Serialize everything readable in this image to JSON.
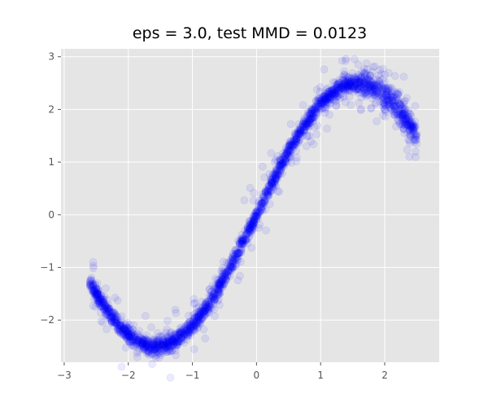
{
  "chart_data": {
    "type": "scatter",
    "title": "eps = 3.0, test MMD = 0.0123",
    "xlabel": "",
    "ylabel": "",
    "xlim": [
      -3.05,
      2.85
    ],
    "ylim": [
      -2.8,
      3.15
    ],
    "xticks": [
      -3,
      -2,
      -1,
      0,
      1,
      2
    ],
    "yticks": [
      -2,
      -1,
      0,
      1,
      2,
      3
    ],
    "grid": true,
    "style": "ggplot",
    "colors": {
      "background": "#E5E5E5",
      "grid": "#FFFFFF",
      "points": "#0000FF"
    },
    "marker_alpha": 0.08,
    "series": [
      {
        "curve_x_range": [
          -2.6,
          2.5
        ],
        "curve": "y = 2.5 * sin(x)",
        "approx_points": [
          {
            "x": -2.6,
            "y": -1.45
          },
          {
            "x": -2.0,
            "y": -2.25
          },
          {
            "x": -1.55,
            "y": -2.45
          },
          {
            "x": -1.0,
            "y": -2.05
          },
          {
            "x": -0.5,
            "y": -1.2
          },
          {
            "x": 0.0,
            "y": 0.0
          },
          {
            "x": 0.5,
            "y": 1.2
          },
          {
            "x": 1.0,
            "y": 2.1
          },
          {
            "x": 1.5,
            "y": 2.5
          },
          {
            "x": 2.0,
            "y": 2.3
          },
          {
            "x": 2.5,
            "y": 1.5
          }
        ]
      }
    ]
  }
}
